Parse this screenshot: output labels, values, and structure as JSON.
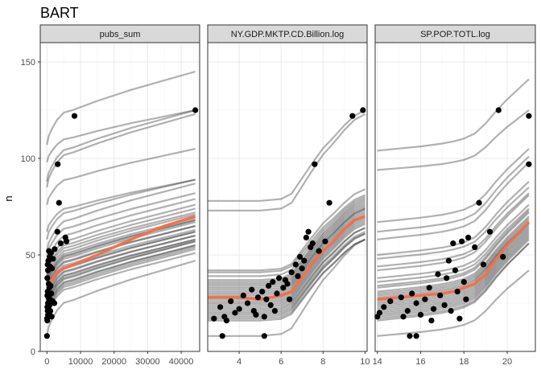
{
  "chart_data": {
    "type": "line",
    "title": "BART",
    "ylabel": "n",
    "ylim": [
      0,
      160
    ],
    "yticks": [
      0,
      50,
      100,
      150
    ],
    "grid": true,
    "colors": {
      "ice": "#333333",
      "pdp": "#F4704A",
      "points": "#000000",
      "strip": "#D9D9D9"
    },
    "panels": [
      {
        "name": "pubs_sum",
        "xlim": [
          -2000,
          45500
        ],
        "xticks": [
          0,
          10000,
          20000,
          30000,
          40000
        ],
        "anchors": [
          0,
          500,
          1500,
          3000,
          5000,
          8000,
          15000,
          25000,
          35000,
          44200
        ],
        "unit_shape": [
          0,
          0.12,
          0.22,
          0.34,
          0.44,
          0.48,
          0.6,
          0.75,
          0.88,
          1.0
        ],
        "pdp": [
          31,
          34,
          37,
          41,
          43,
          45,
          50,
          58,
          65,
          70
        ],
        "ice_base": [
          {
            "y": 107,
            "rise": 38
          },
          {
            "y": 98,
            "rise": 27
          },
          {
            "y": 88,
            "rise": 37
          },
          {
            "y": 85,
            "rise": 38
          },
          {
            "y": 76,
            "rise": 29
          },
          {
            "y": 62,
            "rise": 27
          },
          {
            "y": 58,
            "rise": 31
          },
          {
            "y": 52,
            "rise": 35
          },
          {
            "y": 49,
            "rise": 33
          },
          {
            "y": 45,
            "rise": 34
          },
          {
            "y": 42,
            "rise": 34
          },
          {
            "y": 40,
            "rise": 34
          },
          {
            "y": 39,
            "rise": 33
          },
          {
            "y": 37,
            "rise": 34
          },
          {
            "y": 36,
            "rise": 33
          },
          {
            "y": 35,
            "rise": 33
          },
          {
            "y": 34,
            "rise": 34
          },
          {
            "y": 33,
            "rise": 34
          },
          {
            "y": 32,
            "rise": 33
          },
          {
            "y": 31,
            "rise": 34
          },
          {
            "y": 30,
            "rise": 33
          },
          {
            "y": 29,
            "rise": 33
          },
          {
            "y": 28,
            "rise": 34
          },
          {
            "y": 27,
            "rise": 33
          },
          {
            "y": 26,
            "rise": 34
          },
          {
            "y": 25,
            "rise": 33
          },
          {
            "y": 24,
            "rise": 34
          },
          {
            "y": 23,
            "rise": 34
          },
          {
            "y": 22,
            "rise": 35
          },
          {
            "y": 21,
            "rise": 34
          },
          {
            "y": 20,
            "rise": 35
          },
          {
            "y": 19,
            "rise": 35
          },
          {
            "y": 18,
            "rise": 35
          },
          {
            "y": 17,
            "rise": 34
          },
          {
            "y": 8,
            "rise": 39
          }
        ],
        "points": [
          [
            44200,
            125
          ],
          [
            8200,
            122
          ],
          [
            3200,
            97
          ],
          [
            3600,
            77
          ],
          [
            3100,
            62
          ],
          [
            5500,
            59
          ],
          [
            5800,
            57
          ],
          [
            4100,
            56
          ],
          [
            2300,
            53
          ],
          [
            600,
            52
          ],
          [
            1200,
            51
          ],
          [
            800,
            49
          ],
          [
            1800,
            48
          ],
          [
            400,
            47
          ],
          [
            200,
            45
          ],
          [
            900,
            44
          ],
          [
            1500,
            43
          ],
          [
            300,
            42
          ],
          [
            100,
            38
          ],
          [
            500,
            35
          ],
          [
            1100,
            34
          ],
          [
            700,
            33
          ],
          [
            200,
            31
          ],
          [
            1300,
            30
          ],
          [
            100,
            29
          ],
          [
            400,
            28
          ],
          [
            900,
            27
          ],
          [
            600,
            27
          ],
          [
            1700,
            26
          ],
          [
            300,
            25
          ],
          [
            2200,
            25
          ],
          [
            800,
            24
          ],
          [
            100,
            23
          ],
          [
            500,
            22
          ],
          [
            1000,
            21
          ],
          [
            200,
            21
          ],
          [
            700,
            20
          ],
          [
            300,
            19
          ],
          [
            1400,
            18
          ],
          [
            50,
            17
          ],
          [
            100,
            16
          ],
          [
            0,
            8
          ]
        ]
      },
      {
        "name": "NY.GDP.MKTP.CD.Billion.log",
        "xlim": [
          2.5,
          10.1
        ],
        "xticks": [
          4,
          6,
          8,
          10
        ],
        "anchors": [
          2.5,
          4.0,
          5.0,
          6.0,
          6.5,
          7.0,
          7.5,
          8.0,
          8.5,
          9.0,
          9.5,
          10.0
        ],
        "unit_shape": [
          0,
          0.0,
          0.0,
          0.02,
          0.08,
          0.25,
          0.42,
          0.58,
          0.7,
          0.83,
          0.94,
          1.0
        ],
        "pdp": [
          28,
          28,
          27,
          29,
          31,
          38,
          46,
          52,
          57,
          63,
          68,
          70
        ],
        "ice_base": [
          {
            "y": 78,
            "rise": 47
          },
          {
            "y": 73,
            "rise": 50
          },
          {
            "y": 42,
            "rise": 42
          },
          {
            "y": 41,
            "rise": 40
          },
          {
            "y": 39,
            "rise": 41
          },
          {
            "y": 37,
            "rise": 42
          },
          {
            "y": 36,
            "rise": 42
          },
          {
            "y": 35,
            "rise": 42
          },
          {
            "y": 34,
            "rise": 42
          },
          {
            "y": 33,
            "rise": 42
          },
          {
            "y": 32,
            "rise": 42
          },
          {
            "y": 31,
            "rise": 43
          },
          {
            "y": 30,
            "rise": 43
          },
          {
            "y": 29,
            "rise": 43
          },
          {
            "y": 28,
            "rise": 43
          },
          {
            "y": 27,
            "rise": 43
          },
          {
            "y": 26,
            "rise": 43
          },
          {
            "y": 25,
            "rise": 43
          },
          {
            "y": 24,
            "rise": 43
          },
          {
            "y": 23,
            "rise": 43
          },
          {
            "y": 22,
            "rise": 42
          },
          {
            "y": 21,
            "rise": 43
          },
          {
            "y": 20,
            "rise": 42
          },
          {
            "y": 19,
            "rise": 42
          },
          {
            "y": 18,
            "rise": 43
          },
          {
            "y": 17,
            "rise": 41
          },
          {
            "y": 16,
            "rise": 42
          },
          {
            "y": 8,
            "rise": 50
          }
        ],
        "points": [
          [
            9.9,
            125
          ],
          [
            9.4,
            122
          ],
          [
            7.6,
            97
          ],
          [
            8.3,
            77
          ],
          [
            7.3,
            62
          ],
          [
            7.2,
            59
          ],
          [
            8.1,
            57
          ],
          [
            7.5,
            56
          ],
          [
            7.4,
            54
          ],
          [
            7.8,
            52
          ],
          [
            6.9,
            49
          ],
          [
            7.1,
            47
          ],
          [
            6.7,
            45
          ],
          [
            7.0,
            43
          ],
          [
            6.5,
            41
          ],
          [
            6.8,
            39
          ],
          [
            5.9,
            38
          ],
          [
            6.2,
            37
          ],
          [
            5.6,
            36
          ],
          [
            6.3,
            35
          ],
          [
            5.4,
            34
          ],
          [
            6.1,
            33
          ],
          [
            4.6,
            32
          ],
          [
            5.1,
            31
          ],
          [
            5.8,
            30
          ],
          [
            4.2,
            29
          ],
          [
            4.9,
            28
          ],
          [
            5.3,
            27
          ],
          [
            6.4,
            27
          ],
          [
            3.6,
            26
          ],
          [
            4.4,
            25
          ],
          [
            5.5,
            24
          ],
          [
            3.1,
            23
          ],
          [
            4.0,
            22
          ],
          [
            4.7,
            21
          ],
          [
            5.7,
            21
          ],
          [
            3.8,
            20
          ],
          [
            4.8,
            19
          ],
          [
            3.3,
            18
          ],
          [
            5.2,
            18
          ],
          [
            2.8,
            17
          ],
          [
            3.4,
            16
          ],
          [
            3.2,
            8
          ],
          [
            5.2,
            8
          ]
        ]
      },
      {
        "name": "SP.POP.TOTL.log",
        "xlim": [
          13.9,
          21.3
        ],
        "xticks": [
          14,
          16,
          18,
          20
        ],
        "anchors": [
          14.0,
          15.0,
          16.0,
          17.0,
          17.5,
          18.0,
          18.5,
          19.0,
          19.5,
          20.0,
          20.5,
          21.0
        ],
        "unit_shape": [
          0,
          0.03,
          0.06,
          0.1,
          0.13,
          0.17,
          0.24,
          0.38,
          0.56,
          0.72,
          0.86,
          1.0
        ],
        "pdp": [
          27,
          28,
          29,
          30,
          31,
          33,
          35,
          40,
          48,
          55,
          61,
          67
        ],
        "ice_base": [
          {
            "y": 104,
            "rise": 37
          },
          {
            "y": 94,
            "rise": 31
          },
          {
            "y": 67,
            "rise": 38
          },
          {
            "y": 62,
            "rise": 39
          },
          {
            "y": 58,
            "rise": 40
          },
          {
            "y": 50,
            "rise": 38
          },
          {
            "y": 48,
            "rise": 37
          },
          {
            "y": 44,
            "rise": 38
          },
          {
            "y": 42,
            "rise": 39
          },
          {
            "y": 38,
            "rise": 38
          },
          {
            "y": 36,
            "rise": 38
          },
          {
            "y": 34,
            "rise": 39
          },
          {
            "y": 33,
            "rise": 39
          },
          {
            "y": 31,
            "rise": 39
          },
          {
            "y": 30,
            "rise": 39
          },
          {
            "y": 29,
            "rise": 39
          },
          {
            "y": 28,
            "rise": 39
          },
          {
            "y": 27,
            "rise": 40
          },
          {
            "y": 26,
            "rise": 40
          },
          {
            "y": 25,
            "rise": 40
          },
          {
            "y": 24,
            "rise": 40
          },
          {
            "y": 23,
            "rise": 40
          },
          {
            "y": 22,
            "rise": 40
          },
          {
            "y": 21,
            "rise": 40
          },
          {
            "y": 20,
            "rise": 40
          },
          {
            "y": 19,
            "rise": 40
          },
          {
            "y": 18,
            "rise": 40
          },
          {
            "y": 17,
            "rise": 39
          },
          {
            "y": 16,
            "rise": 40
          },
          {
            "y": 8,
            "rise": 34
          }
        ],
        "points": [
          [
            19.6,
            125
          ],
          [
            21.0,
            122
          ],
          [
            21.0,
            97
          ],
          [
            18.7,
            77
          ],
          [
            19.2,
            62
          ],
          [
            18.2,
            59
          ],
          [
            17.5,
            56
          ],
          [
            17.9,
            57
          ],
          [
            18.5,
            54
          ],
          [
            19.8,
            49
          ],
          [
            17.3,
            47
          ],
          [
            18.9,
            45
          ],
          [
            17.6,
            42
          ],
          [
            16.8,
            40
          ],
          [
            17.2,
            38
          ],
          [
            18.0,
            36
          ],
          [
            16.4,
            33
          ],
          [
            17.7,
            31
          ],
          [
            15.6,
            30
          ],
          [
            16.9,
            29
          ],
          [
            15.1,
            28
          ],
          [
            16.2,
            27
          ],
          [
            18.1,
            27
          ],
          [
            14.6,
            26
          ],
          [
            15.8,
            25
          ],
          [
            17.1,
            24
          ],
          [
            14.3,
            23
          ],
          [
            16.6,
            22
          ],
          [
            15.4,
            21
          ],
          [
            17.4,
            21
          ],
          [
            14.1,
            20
          ],
          [
            16.0,
            19
          ],
          [
            15.2,
            18
          ],
          [
            14.0,
            18
          ],
          [
            17.8,
            17
          ],
          [
            16.5,
            16
          ],
          [
            15.5,
            8
          ],
          [
            15.8,
            8
          ]
        ]
      }
    ]
  }
}
